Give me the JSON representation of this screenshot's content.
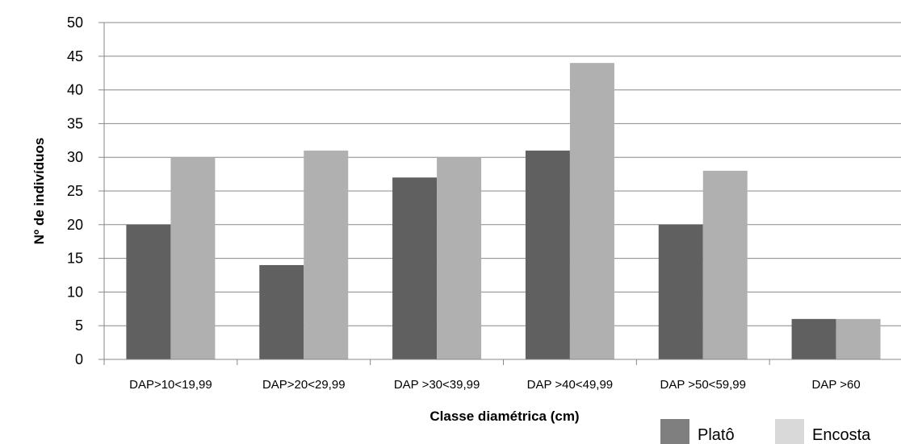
{
  "chart_data": {
    "type": "bar",
    "title": "",
    "xlabel": "Classe diamétrica (cm)",
    "ylabel": "Nº de indivíduos",
    "ylim": [
      0,
      50
    ],
    "yticks": [
      "0",
      "5",
      "10",
      "15",
      "20",
      "25",
      "30",
      "35",
      "40",
      "45",
      "50"
    ],
    "grid": true,
    "legend_position": "bottom-right",
    "categories": [
      "DAP>10<19,99",
      "DAP>20<29,99",
      "DAP >30<39,99",
      "DAP >40<49,99",
      "DAP >50<59,99",
      "DAP >60"
    ],
    "series": [
      {
        "name": "Platô",
        "color": "#606060",
        "values": [
          20,
          14,
          27,
          31,
          20,
          6
        ]
      },
      {
        "name": "Encosta",
        "color": "#b0b0b0",
        "legend_color": "#d9d9d9",
        "values": [
          30,
          31,
          30,
          44,
          28,
          6
        ]
      }
    ]
  }
}
